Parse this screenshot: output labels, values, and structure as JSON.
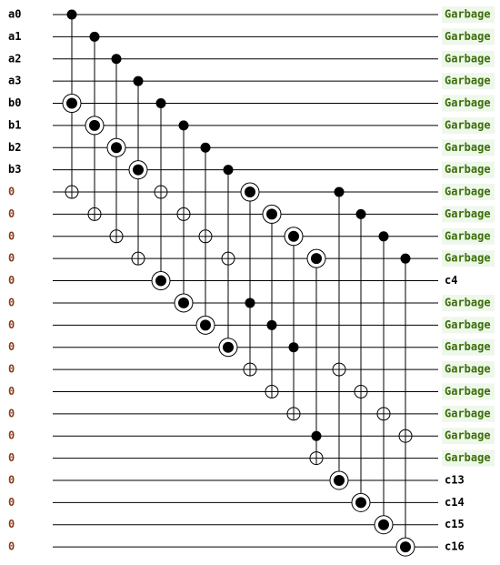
{
  "rows": [
    {
      "input": "a0",
      "output": "Garbage"
    },
    {
      "input": "a1",
      "output": "Garbage"
    },
    {
      "input": "a2",
      "output": "Garbage"
    },
    {
      "input": "a3",
      "output": "Garbage"
    },
    {
      "input": "b0",
      "output": "Garbage"
    },
    {
      "input": "b1",
      "output": "Garbage"
    },
    {
      "input": "b2",
      "output": "Garbage"
    },
    {
      "input": "b3",
      "output": "Garbage"
    },
    {
      "input": "0",
      "output": "Garbage"
    },
    {
      "input": "0",
      "output": "Garbage"
    },
    {
      "input": "0",
      "output": "Garbage"
    },
    {
      "input": "0",
      "output": "Garbage"
    },
    {
      "input": "0",
      "output": "c4"
    },
    {
      "input": "0",
      "output": "Garbage"
    },
    {
      "input": "0",
      "output": "Garbage"
    },
    {
      "input": "0",
      "output": "Garbage"
    },
    {
      "input": "0",
      "output": "Garbage"
    },
    {
      "input": "0",
      "output": "Garbage"
    },
    {
      "input": "0",
      "output": "Garbage"
    },
    {
      "input": "0",
      "output": "Garbage"
    },
    {
      "input": "0",
      "output": "Garbage"
    },
    {
      "input": "0",
      "output": "c13"
    },
    {
      "input": "0",
      "output": "c14"
    },
    {
      "input": "0",
      "output": "c15"
    },
    {
      "input": "0",
      "output": "c16"
    }
  ]
}
